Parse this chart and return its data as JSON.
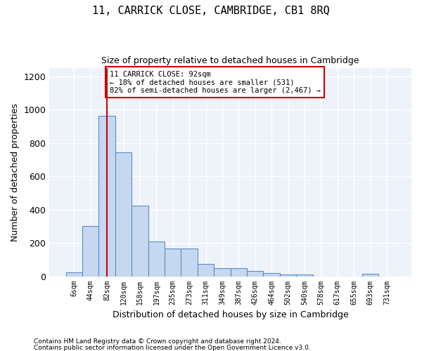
{
  "title": "11, CARRICK CLOSE, CAMBRIDGE, CB1 8RQ",
  "subtitle": "Size of property relative to detached houses in Cambridge",
  "xlabel": "Distribution of detached houses by size in Cambridge",
  "ylabel": "Number of detached properties",
  "footnote1": "Contains HM Land Registry data © Crown copyright and database right 2024.",
  "footnote2": "Contains public sector information licensed under the Open Government Licence v3.0.",
  "annotation_line1": "11 CARRICK CLOSE: 92sqm",
  "annotation_line2": "← 18% of detached houses are smaller (531)",
  "annotation_line3": "82% of semi-detached houses are larger (2,467) →",
  "bar_color": "#c5d8f0",
  "bar_edge_color": "#5a8fc3",
  "vline_color": "#cc0000",
  "vline_x": 2,
  "bar_values": [
    25,
    300,
    965,
    745,
    425,
    210,
    165,
    165,
    75,
    50,
    50,
    30,
    20,
    10,
    10,
    0,
    0,
    0,
    15,
    0
  ],
  "x_labels": [
    "6sqm",
    "44sqm",
    "82sqm",
    "120sqm",
    "158sqm",
    "197sqm",
    "235sqm",
    "273sqm",
    "311sqm",
    "349sqm",
    "387sqm",
    "426sqm",
    "464sqm",
    "502sqm",
    "540sqm",
    "578sqm",
    "617sqm",
    "655sqm",
    "693sqm",
    "731sqm"
  ],
  "ylim": [
    0,
    1250
  ],
  "yticks": [
    0,
    200,
    400,
    600,
    800,
    1000,
    1200
  ],
  "figsize": [
    6.0,
    5.0
  ],
  "dpi": 100
}
